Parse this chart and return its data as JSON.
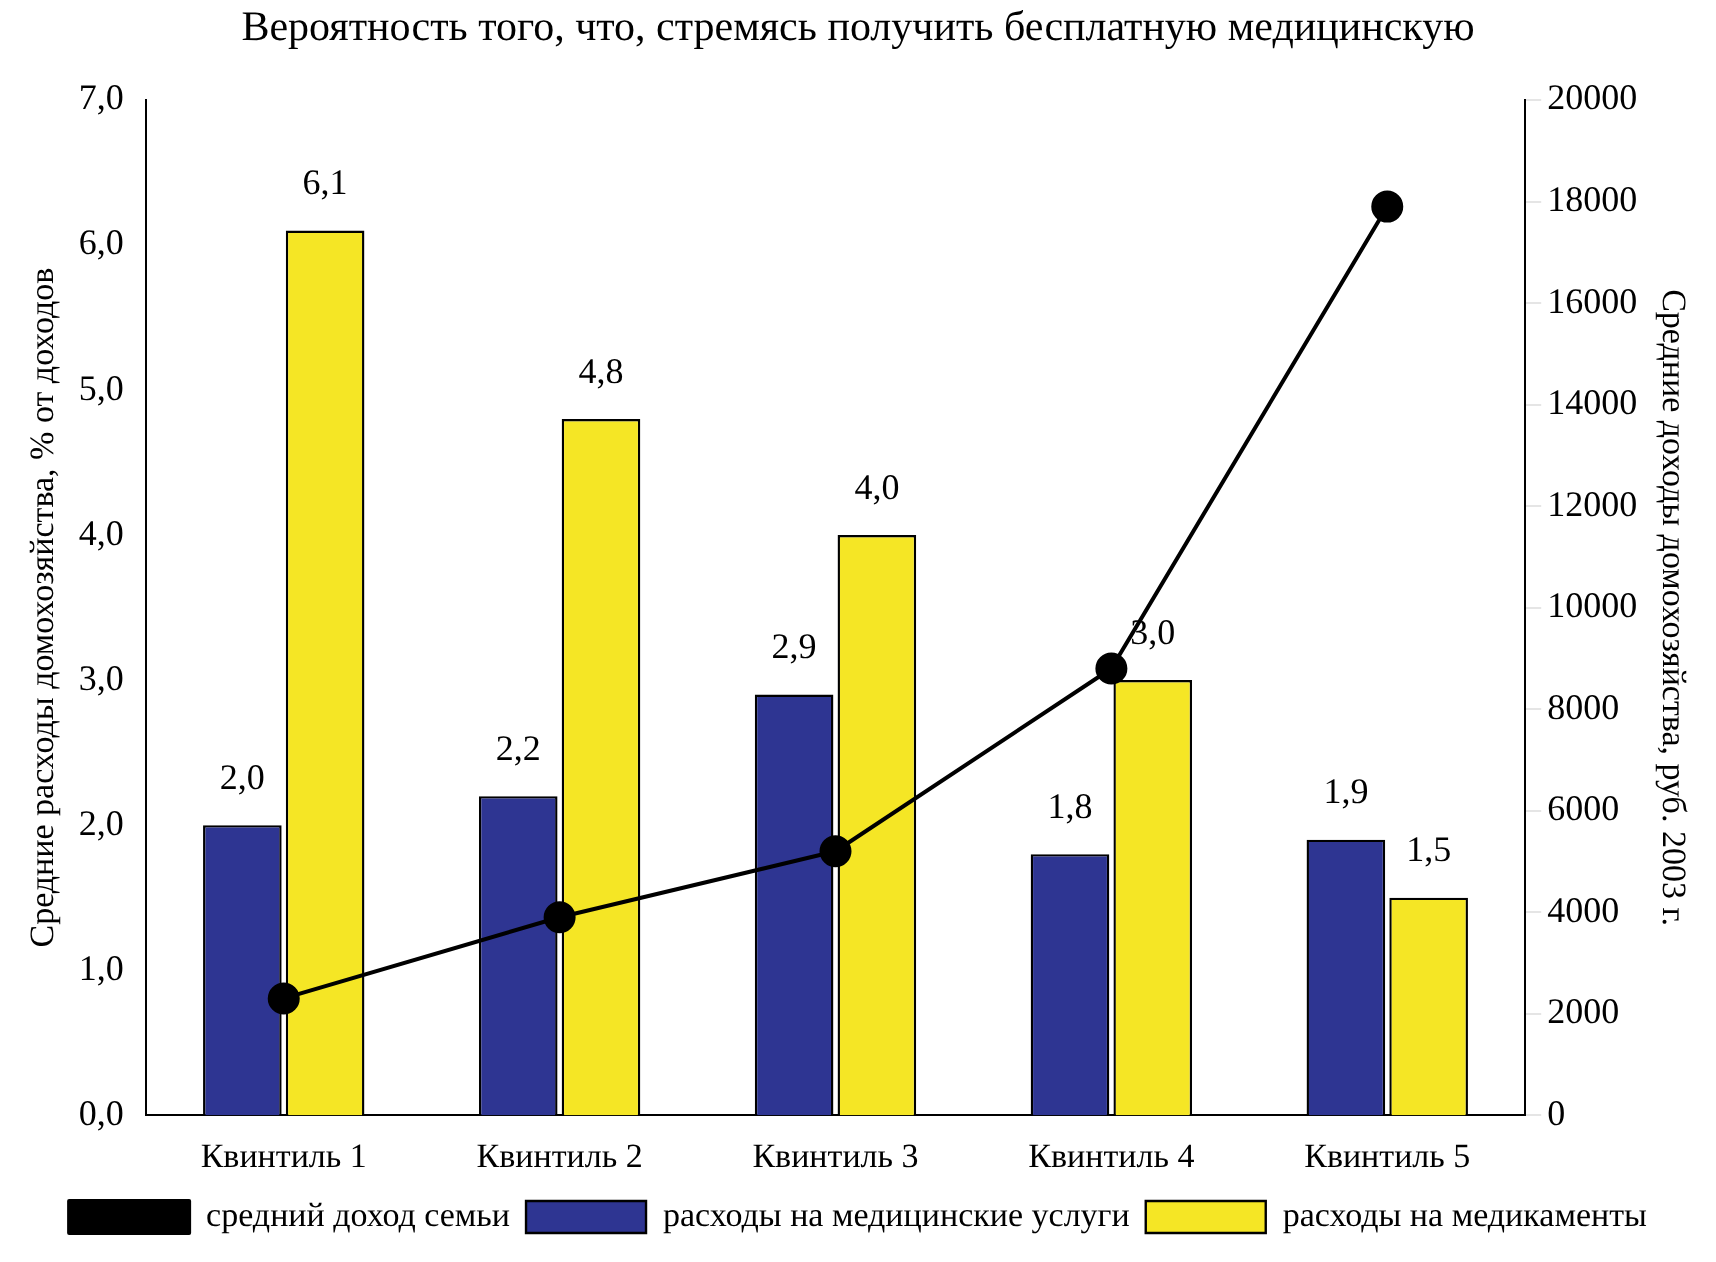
{
  "chart_data": {
    "type": "bar",
    "annotations": [
      "Вероятность того, что, стремясь получить бесплатную медицинскую"
    ],
    "categories": [
      "Квинтиль 1",
      "Квинтиль 2",
      "Квинтиль 3",
      "Квинтиль 4",
      "Квинтиль 5"
    ],
    "ylabel": "Средние расходы домохозяйства, % от доходов",
    "y2label": "Средние доходы домохозяйства, руб. 2003 г.",
    "ylim": [
      0,
      7
    ],
    "yticks": [
      {
        "value": 0,
        "label": "0,0"
      },
      {
        "value": 1,
        "label": "1,0"
      },
      {
        "value": 2,
        "label": "2,0"
      },
      {
        "value": 3,
        "label": "3,0"
      },
      {
        "value": 4,
        "label": "4,0"
      },
      {
        "value": 5,
        "label": "5,0"
      },
      {
        "value": 6,
        "label": "6,0"
      },
      {
        "value": 7,
        "label": "7,0"
      }
    ],
    "y2lim": [
      0,
      20000
    ],
    "y2ticks": [
      0,
      2000,
      4000,
      6000,
      8000,
      10000,
      12000,
      14000,
      16000,
      18000,
      20000
    ],
    "series": [
      {
        "name": "расходы на медицинские услуги",
        "color": "#2e3592",
        "values": [
          2.0,
          2.2,
          2.9,
          1.8,
          1.9
        ],
        "value_labels": [
          "2,0",
          "2,2",
          "2,9",
          "1,8",
          "1,9"
        ]
      },
      {
        "name": "расходы на медикаменты",
        "color": "#f5e625",
        "values": [
          6.1,
          4.8,
          4.0,
          3.0,
          1.5
        ],
        "value_labels": [
          "6,1",
          "4,8",
          "4,0",
          "3,0",
          "1,5"
        ]
      },
      {
        "name": "средний доход семьи",
        "type": "line",
        "axis": "y2",
        "color": "#000000",
        "values": [
          2300,
          3900,
          5200,
          8800,
          17900
        ]
      }
    ],
    "grid": false,
    "legend": "bottom",
    "marker": "circle",
    "line_style": "solid"
  }
}
